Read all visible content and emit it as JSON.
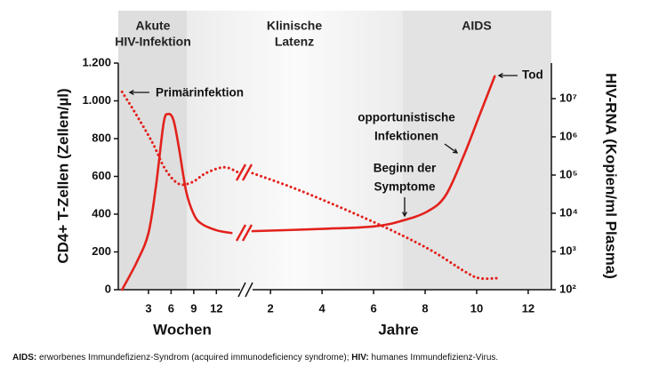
{
  "chart_data": {
    "type": "line",
    "phases": [
      [
        "Akute",
        "HIV-Infektion"
      ],
      [
        "Klinische",
        "Latenz"
      ],
      [
        "AIDS"
      ]
    ],
    "ylabel": "CD4+ T-Zellen (Zellen/µl)",
    "y2label": "HIV-RNA (Kopien/ml Plasma)",
    "ylim": [
      0,
      1200
    ],
    "yticks": [
      0,
      200,
      400,
      600,
      800,
      {
        "value": 1000,
        "label": "1.000"
      },
      {
        "value": 1200,
        "label": "1.200"
      }
    ],
    "y2lim": [
      100,
      85000000
    ],
    "y2scale": "log",
    "y2ticks": [
      {
        "value": 100,
        "label": "10²"
      },
      {
        "value": 1000,
        "label": "10³"
      },
      {
        "value": 10000,
        "label": "10⁴"
      },
      {
        "value": 100000,
        "label": "10⁵"
      },
      {
        "value": 1000000,
        "label": "10⁶"
      },
      {
        "value": 10000000,
        "label": "10⁷"
      }
    ],
    "x_segments": [
      {
        "label": "Wochen",
        "xlim": [
          -1,
          15.5
        ],
        "xticks": [
          3,
          6,
          9,
          12
        ]
      },
      {
        "label": "Jahre",
        "xlim": [
          1.2,
          12.9
        ],
        "xticks": [
          2,
          4,
          6,
          8,
          10,
          12
        ]
      }
    ],
    "series": [
      {
        "color": "#e3211c",
        "style": "solid",
        "axis": "y",
        "segments": [
          {
            "x": [
              -0.5,
              1.5,
              3,
              4,
              5,
              5.6,
              6.3,
              7,
              8,
              9,
              10,
              12,
              14
            ],
            "values": [
              0,
              150,
              300,
              550,
              880,
              930,
              900,
              760,
              520,
              400,
              350,
              315,
              300
            ]
          },
          {
            "x": [
              1.3,
              4,
              6,
              7.1,
              8.1,
              8.8,
              9.5,
              10.1,
              10.7
            ],
            "values": [
              310,
              322,
              335,
              365,
              415,
              500,
              710,
              920,
              1130
            ]
          }
        ]
      },
      {
        "color": "#e3211c",
        "style": "dotted",
        "axis": "y2",
        "segments": [
          {
            "x": [
              -0.5,
              1.1,
              3.5,
              5.2,
              7,
              8.8,
              10.6,
              13,
              14.8
            ],
            "values": [
              15000000,
              4700000,
              720000,
              145000,
              59000,
              65000,
              112000,
              160000,
              120000
            ]
          },
          {
            "x": [
              1.3,
              3.2,
              6,
              8.1,
              9.5,
              10.1,
              10.8
            ],
            "values": [
              112000,
              38000,
              5900,
              1200,
              310,
              200,
              200
            ]
          }
        ]
      }
    ],
    "annotations": [
      [
        "Primärinfektion"
      ],
      [
        "Tod"
      ],
      [
        "opportunistische",
        "Infektionen"
      ],
      [
        "Beginn der",
        "Symptome"
      ]
    ],
    "footnote": [
      "AIDS:",
      " erworbenes Immundefizienz-Syndrom (acquired immunodeficiency syndrome); ",
      "HIV:",
      " humanes Immundefizienz-Virus."
    ]
  }
}
